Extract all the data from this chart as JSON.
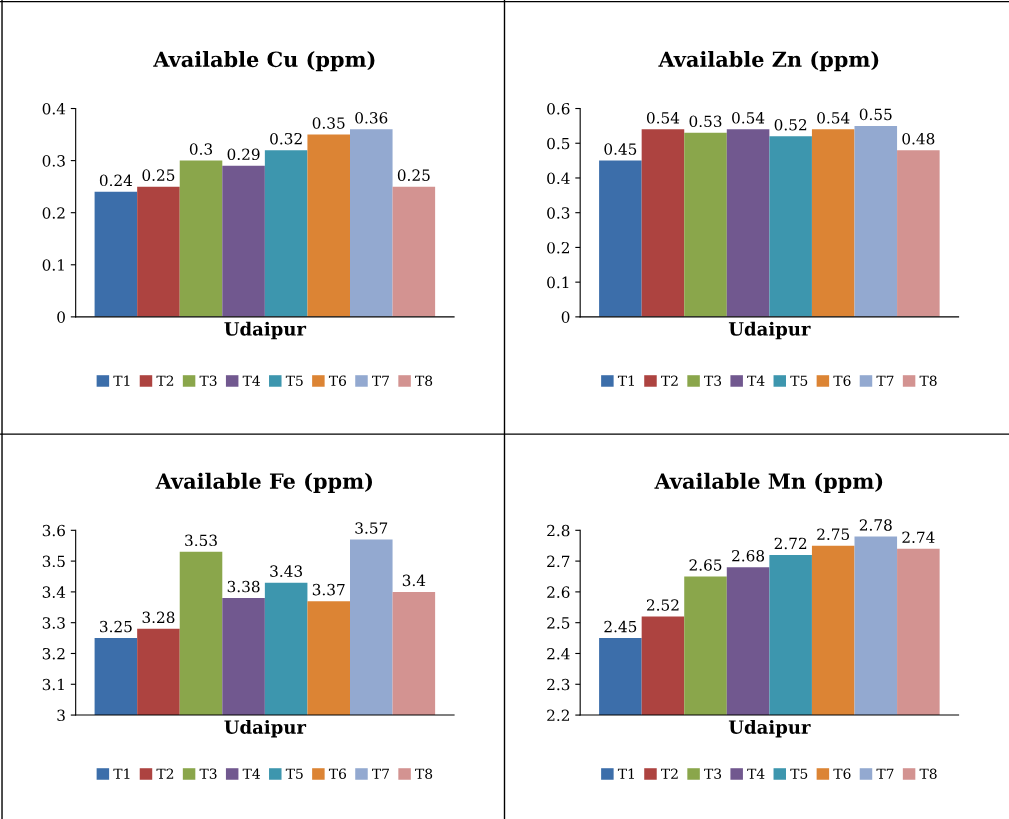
{
  "chart_data": [
    {
      "type": "bar",
      "title": "Available Cu (ppm)",
      "categories": [
        "Udaipur"
      ],
      "ylim": [
        0,
        0.4
      ],
      "yticks": [
        0,
        0.1,
        0.2,
        0.3,
        0.4
      ],
      "data_labels": true,
      "legend": "bottom",
      "grid": false,
      "series": [
        {
          "name": "T1",
          "color": "#3c6eaa",
          "values": [
            0.24
          ]
        },
        {
          "name": "T2",
          "color": "#ad4340",
          "values": [
            0.25
          ]
        },
        {
          "name": "T3",
          "color": "#8aa64b",
          "values": [
            0.3
          ]
        },
        {
          "name": "T4",
          "color": "#71588f",
          "values": [
            0.29
          ]
        },
        {
          "name": "T5",
          "color": "#3d96ae",
          "values": [
            0.32
          ]
        },
        {
          "name": "T6",
          "color": "#dc8434",
          "values": [
            0.35
          ]
        },
        {
          "name": "T7",
          "color": "#93a9d0",
          "values": [
            0.36
          ]
        },
        {
          "name": "T8",
          "color": "#d39391",
          "values": [
            0.25
          ]
        }
      ]
    },
    {
      "type": "bar",
      "title": "Available Zn (ppm)",
      "categories": [
        "Udaipur"
      ],
      "ylim": [
        0,
        0.6
      ],
      "yticks": [
        0,
        0.1,
        0.2,
        0.3,
        0.4,
        0.5,
        0.6
      ],
      "data_labels": true,
      "legend": "bottom",
      "grid": false,
      "series": [
        {
          "name": "T1",
          "color": "#3c6eaa",
          "values": [
            0.45
          ]
        },
        {
          "name": "T2",
          "color": "#ad4340",
          "values": [
            0.54
          ]
        },
        {
          "name": "T3",
          "color": "#8aa64b",
          "values": [
            0.53
          ]
        },
        {
          "name": "T4",
          "color": "#71588f",
          "values": [
            0.54
          ]
        },
        {
          "name": "T5",
          "color": "#3d96ae",
          "values": [
            0.52
          ]
        },
        {
          "name": "T6",
          "color": "#dc8434",
          "values": [
            0.54
          ]
        },
        {
          "name": "T7",
          "color": "#93a9d0",
          "values": [
            0.55
          ]
        },
        {
          "name": "T8",
          "color": "#d39391",
          "values": [
            0.48
          ]
        }
      ]
    },
    {
      "type": "bar",
      "title": "Available Fe (ppm)",
      "categories": [
        "Udaipur"
      ],
      "ylim": [
        3,
        3.6
      ],
      "yticks": [
        3,
        3.1,
        3.2,
        3.3,
        3.4,
        3.5,
        3.6
      ],
      "data_labels": true,
      "legend": "bottom",
      "grid": false,
      "series": [
        {
          "name": "T1",
          "color": "#3c6eaa",
          "values": [
            3.25
          ]
        },
        {
          "name": "T2",
          "color": "#ad4340",
          "values": [
            3.28
          ]
        },
        {
          "name": "T3",
          "color": "#8aa64b",
          "values": [
            3.53
          ]
        },
        {
          "name": "T4",
          "color": "#71588f",
          "values": [
            3.38
          ]
        },
        {
          "name": "T5",
          "color": "#3d96ae",
          "values": [
            3.43
          ]
        },
        {
          "name": "T6",
          "color": "#dc8434",
          "values": [
            3.37
          ]
        },
        {
          "name": "T7",
          "color": "#93a9d0",
          "values": [
            3.57
          ]
        },
        {
          "name": "T8",
          "color": "#d39391",
          "values": [
            3.4
          ]
        }
      ]
    },
    {
      "type": "bar",
      "title": "Available Mn (ppm)",
      "categories": [
        "Udaipur"
      ],
      "ylim": [
        2.2,
        2.8
      ],
      "yticks": [
        2.2,
        2.3,
        2.4,
        2.5,
        2.6,
        2.7,
        2.8
      ],
      "data_labels": true,
      "legend": "bottom",
      "grid": false,
      "series": [
        {
          "name": "T1",
          "color": "#3c6eaa",
          "values": [
            2.45
          ]
        },
        {
          "name": "T2",
          "color": "#ad4340",
          "values": [
            2.52
          ]
        },
        {
          "name": "T3",
          "color": "#8aa64b",
          "values": [
            2.65
          ]
        },
        {
          "name": "T4",
          "color": "#71588f",
          "values": [
            2.68
          ]
        },
        {
          "name": "T5",
          "color": "#3d96ae",
          "values": [
            2.72
          ]
        },
        {
          "name": "T6",
          "color": "#dc8434",
          "values": [
            2.75
          ]
        },
        {
          "name": "T7",
          "color": "#93a9d0",
          "values": [
            2.78
          ]
        },
        {
          "name": "T8",
          "color": "#d39391",
          "values": [
            2.74
          ]
        }
      ]
    }
  ]
}
